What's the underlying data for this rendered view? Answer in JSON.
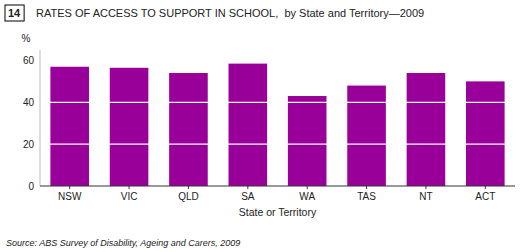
{
  "chart_data": {
    "type": "bar",
    "title": "RATES OF ACCESS TO SUPPORT IN SCHOOL,  by State and Territory—2009",
    "categories": [
      "NSW",
      "VIC",
      "QLD",
      "SA",
      "WA",
      "TAS",
      "NT",
      "ACT"
    ],
    "values": [
      57.0,
      56.5,
      54.0,
      58.5,
      43.0,
      48.0,
      54.0,
      50.0
    ],
    "color": "#990099",
    "xlabel": "State or Territory",
    "ylabel": "%",
    "ylim": [
      0,
      65
    ],
    "yticks": [
      0,
      20,
      40,
      60
    ],
    "grid": true,
    "annotations": [
      "14",
      "Source: ABS Survey of Disability, Ageing and Carers, 2009"
    ]
  }
}
